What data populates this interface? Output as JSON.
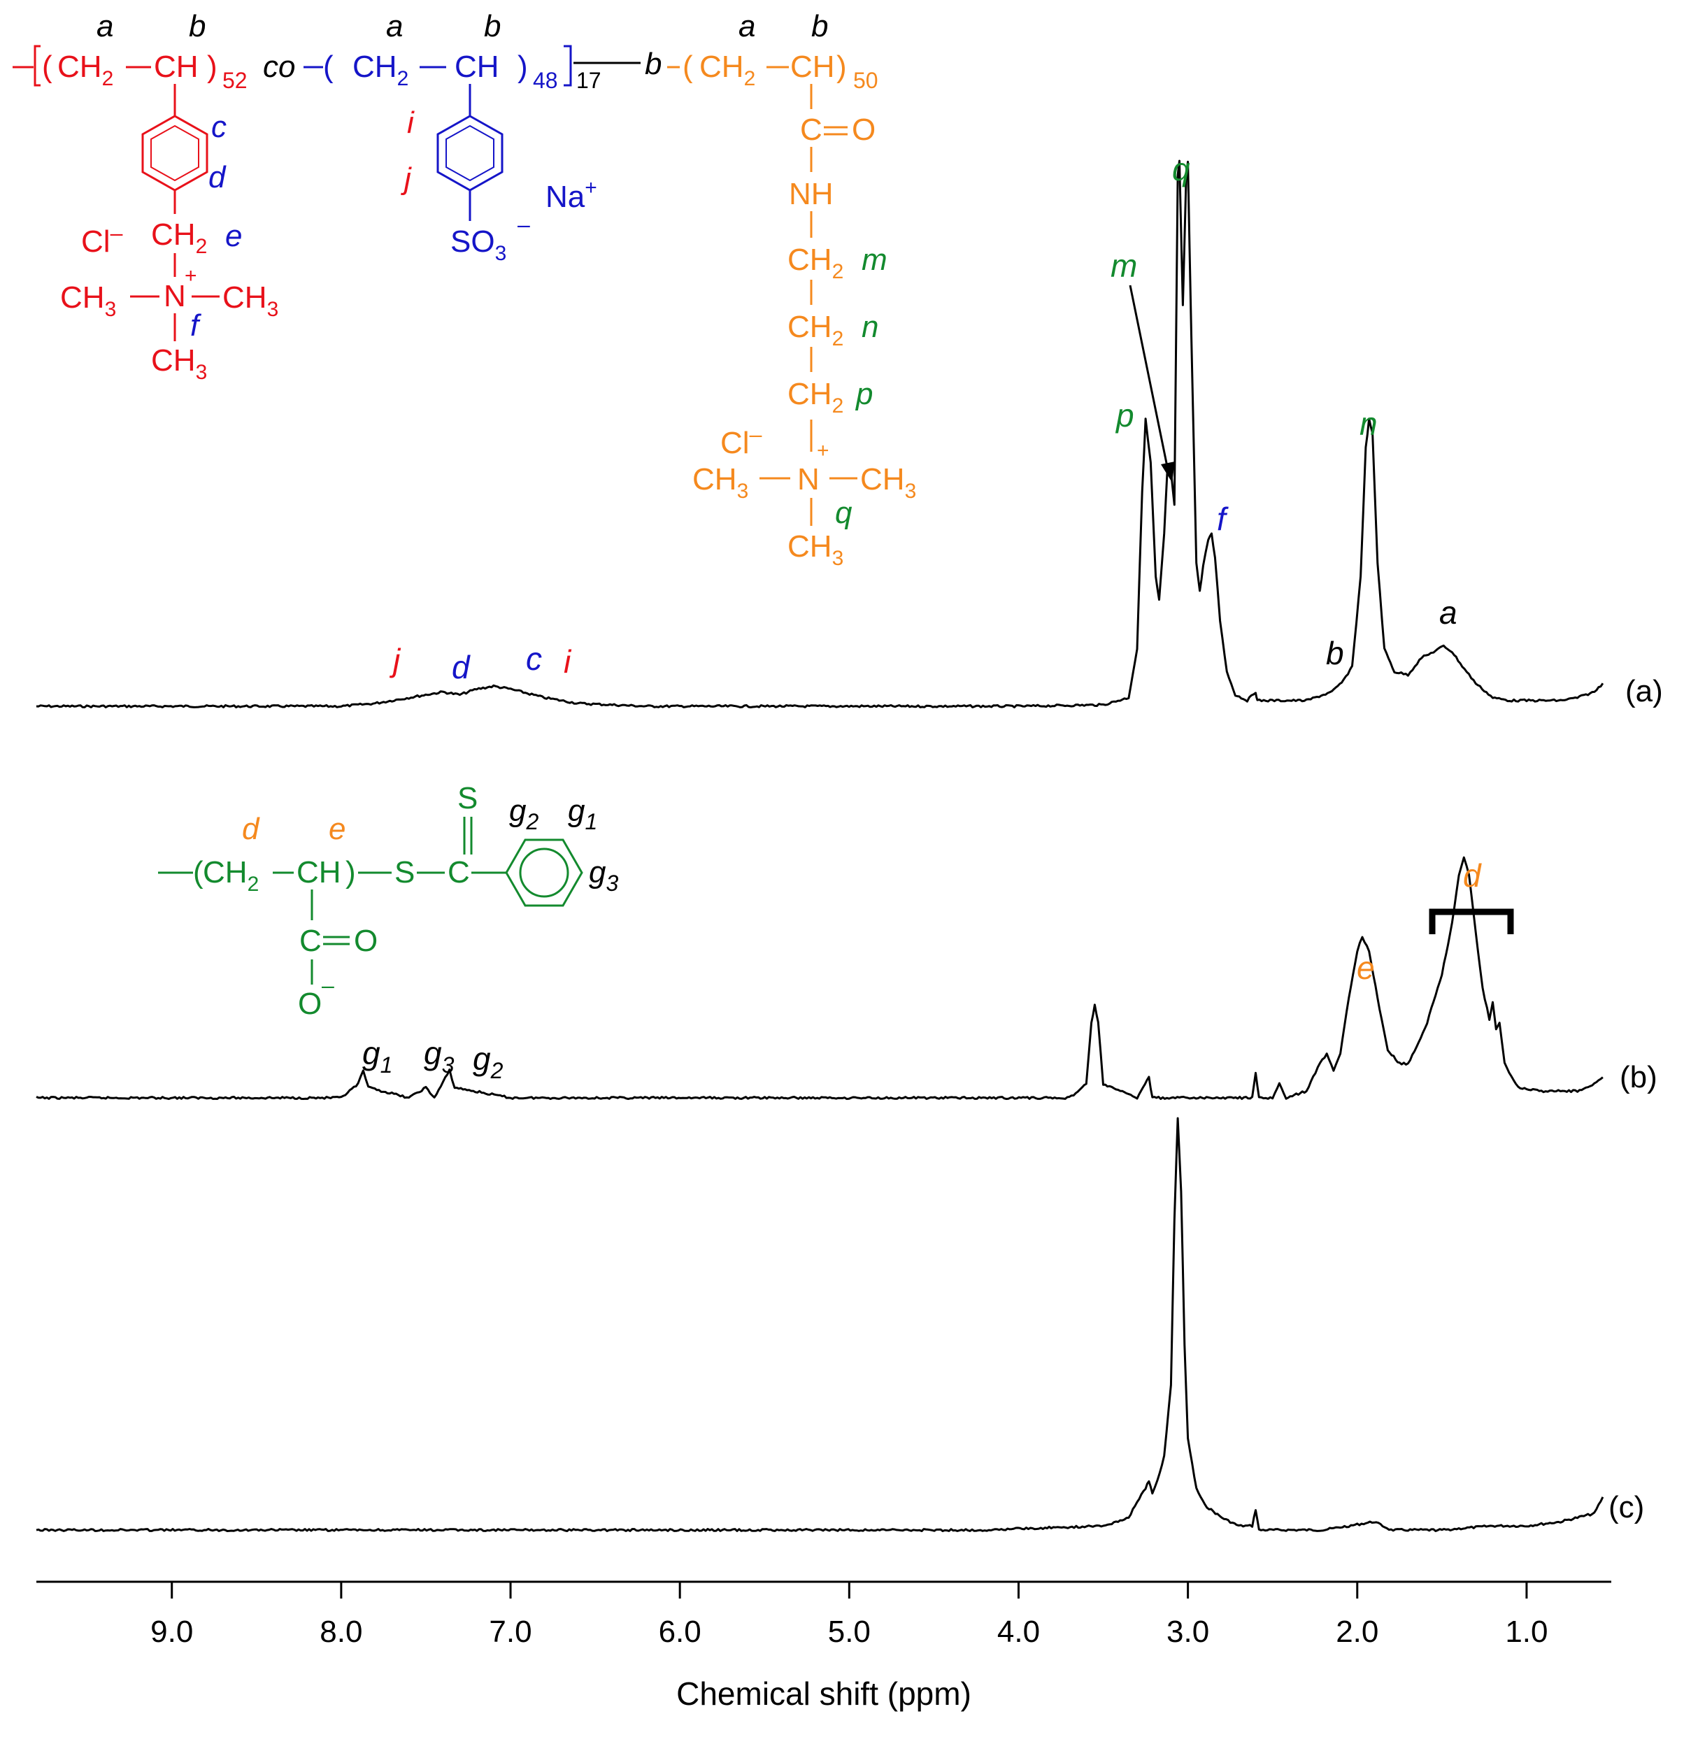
{
  "chart_data": {
    "type": "line",
    "xlabel": "Chemical shift (ppm)",
    "ylabel": "",
    "xlim": [
      9.8,
      0.5
    ],
    "xreversed": true,
    "x_ticks": [
      "9.0",
      "8.0",
      "7.0",
      "6.0",
      "5.0",
      "4.0",
      "3.0",
      "2.0",
      "1.0"
    ],
    "x_tick_values": [
      9.0,
      8.0,
      7.0,
      6.0,
      5.0,
      4.0,
      3.0,
      2.0,
      1.0
    ],
    "grid": false,
    "legend": "none",
    "series": [
      {
        "name": "(a)",
        "color": "#000000",
        "points": [
          [
            9.8,
            0.0
          ],
          [
            8.0,
            0.0
          ],
          [
            7.8,
            0.01
          ],
          [
            7.6,
            0.03
          ],
          [
            7.4,
            0.05
          ],
          [
            7.3,
            0.04
          ],
          [
            7.2,
            0.06
          ],
          [
            7.1,
            0.07
          ],
          [
            7.0,
            0.06
          ],
          [
            6.8,
            0.03
          ],
          [
            6.6,
            0.01
          ],
          [
            6.2,
            0.0
          ],
          [
            4.0,
            0.0
          ],
          [
            3.5,
            0.005
          ],
          [
            3.35,
            0.03
          ],
          [
            3.3,
            0.2
          ],
          [
            3.27,
            0.75
          ],
          [
            3.25,
            1.0
          ],
          [
            3.22,
            0.85
          ],
          [
            3.19,
            0.45
          ],
          [
            3.17,
            0.37
          ],
          [
            3.14,
            0.6
          ],
          [
            3.12,
            0.84
          ],
          [
            3.1,
            0.82
          ],
          [
            3.08,
            0.7
          ],
          [
            3.06,
            1.85
          ],
          [
            3.05,
            1.9
          ],
          [
            3.03,
            1.4
          ],
          [
            3.01,
            1.85
          ],
          [
            3.0,
            1.9
          ],
          [
            2.98,
            1.3
          ],
          [
            2.95,
            0.5
          ],
          [
            2.93,
            0.4
          ],
          [
            2.91,
            0.49
          ],
          [
            2.88,
            0.58
          ],
          [
            2.86,
            0.6
          ],
          [
            2.84,
            0.52
          ],
          [
            2.81,
            0.3
          ],
          [
            2.77,
            0.12
          ],
          [
            2.72,
            0.04
          ],
          [
            2.65,
            0.02
          ],
          [
            2.6,
            0.05
          ],
          [
            2.59,
            0.02
          ],
          [
            2.3,
            0.02
          ],
          [
            2.15,
            0.05
          ],
          [
            2.08,
            0.09
          ],
          [
            2.03,
            0.14
          ],
          [
            1.98,
            0.45
          ],
          [
            1.95,
            0.9
          ],
          [
            1.93,
            1.0
          ],
          [
            1.91,
            0.95
          ],
          [
            1.88,
            0.5
          ],
          [
            1.84,
            0.2
          ],
          [
            1.78,
            0.12
          ],
          [
            1.7,
            0.11
          ],
          [
            1.62,
            0.17
          ],
          [
            1.58,
            0.18
          ],
          [
            1.55,
            0.19
          ],
          [
            1.49,
            0.21
          ],
          [
            1.44,
            0.19
          ],
          [
            1.38,
            0.14
          ],
          [
            1.3,
            0.08
          ],
          [
            1.2,
            0.03
          ],
          [
            1.1,
            0.02
          ],
          [
            0.95,
            0.02
          ],
          [
            0.8,
            0.02
          ],
          [
            0.7,
            0.03
          ],
          [
            0.6,
            0.05
          ],
          [
            0.55,
            0.08
          ]
        ]
      },
      {
        "name": "(b)",
        "color": "#000000",
        "points": [
          [
            9.8,
            0.0
          ],
          [
            8.0,
            0.0
          ],
          [
            7.9,
            0.04
          ],
          [
            7.87,
            0.08
          ],
          [
            7.84,
            0.03
          ],
          [
            7.6,
            0.0
          ],
          [
            7.5,
            0.03
          ],
          [
            7.45,
            0.0
          ],
          [
            7.36,
            0.08
          ],
          [
            7.33,
            0.03
          ],
          [
            7.0,
            0.0
          ],
          [
            3.7,
            0.0
          ],
          [
            3.6,
            0.04
          ],
          [
            3.57,
            0.22
          ],
          [
            3.55,
            0.27
          ],
          [
            3.53,
            0.22
          ],
          [
            3.5,
            0.04
          ],
          [
            3.3,
            0.0
          ],
          [
            3.23,
            0.06
          ],
          [
            3.21,
            0.0
          ],
          [
            2.62,
            0.0
          ],
          [
            2.6,
            0.07
          ],
          [
            2.58,
            0.0
          ],
          [
            2.5,
            0.0
          ],
          [
            2.46,
            0.04
          ],
          [
            2.42,
            0.0
          ],
          [
            2.3,
            0.02
          ],
          [
            2.22,
            0.1
          ],
          [
            2.18,
            0.13
          ],
          [
            2.14,
            0.08
          ],
          [
            2.1,
            0.13
          ],
          [
            2.05,
            0.29
          ],
          [
            2.0,
            0.43
          ],
          [
            1.97,
            0.47
          ],
          [
            1.93,
            0.43
          ],
          [
            1.88,
            0.29
          ],
          [
            1.82,
            0.14
          ],
          [
            1.75,
            0.1
          ],
          [
            1.7,
            0.1
          ],
          [
            1.6,
            0.2
          ],
          [
            1.5,
            0.36
          ],
          [
            1.44,
            0.51
          ],
          [
            1.4,
            0.65
          ],
          [
            1.37,
            0.7
          ],
          [
            1.34,
            0.65
          ],
          [
            1.3,
            0.48
          ],
          [
            1.26,
            0.32
          ],
          [
            1.22,
            0.23
          ],
          [
            1.2,
            0.28
          ],
          [
            1.18,
            0.2
          ],
          [
            1.16,
            0.22
          ],
          [
            1.13,
            0.1
          ],
          [
            1.05,
            0.03
          ],
          [
            0.9,
            0.02
          ],
          [
            0.7,
            0.02
          ],
          [
            0.6,
            0.04
          ],
          [
            0.55,
            0.06
          ]
        ]
      },
      {
        "name": "(c)",
        "color": "#000000",
        "points": [
          [
            9.8,
            0.0
          ],
          [
            4.2,
            0.0
          ],
          [
            3.5,
            0.01
          ],
          [
            3.35,
            0.03
          ],
          [
            3.3,
            0.07
          ],
          [
            3.25,
            0.1
          ],
          [
            3.23,
            0.12
          ],
          [
            3.21,
            0.09
          ],
          [
            3.18,
            0.12
          ],
          [
            3.14,
            0.18
          ],
          [
            3.1,
            0.35
          ],
          [
            3.08,
            0.75
          ],
          [
            3.06,
            1.0
          ],
          [
            3.04,
            0.82
          ],
          [
            3.02,
            0.45
          ],
          [
            3.0,
            0.22
          ],
          [
            2.95,
            0.1
          ],
          [
            2.9,
            0.06
          ],
          [
            2.8,
            0.03
          ],
          [
            2.7,
            0.01
          ],
          [
            2.62,
            0.01
          ],
          [
            2.6,
            0.05
          ],
          [
            2.58,
            0.0
          ],
          [
            2.2,
            0.0
          ],
          [
            1.9,
            0.02
          ],
          [
            1.8,
            0.0
          ],
          [
            1.5,
            0.0
          ],
          [
            1.2,
            0.01
          ],
          [
            1.0,
            0.01
          ],
          [
            0.8,
            0.02
          ],
          [
            0.6,
            0.04
          ],
          [
            0.55,
            0.08
          ]
        ]
      }
    ]
  },
  "labels": {
    "spectrum_a": "(a)",
    "spectrum_b": "(b)",
    "spectrum_c": "(c)",
    "peaks_a": {
      "j": "j",
      "d": "d",
      "c": "c",
      "i": "i",
      "p": "p",
      "m": "m",
      "q": "q",
      "f": "f",
      "b": "b",
      "n": "n",
      "a": "a"
    },
    "peaks_b": {
      "g1": "g",
      "g1_sub": "1",
      "g3": "g",
      "g3_sub": "3",
      "g2": "g",
      "g2_sub": "2",
      "e": "e",
      "d": "d"
    }
  },
  "structure_top": {
    "red_block": {
      "a": "a",
      "b": "b",
      "sub": "52",
      "ch2": "CH",
      "ch2_sub": "2",
      "ch": "CH",
      "c": "c",
      "d": "d",
      "e": "e",
      "f": "f",
      "cl": "Cl",
      "minus": "–",
      "plus": "+",
      "n": "N",
      "ch3": "CH",
      "ch3_sub": "3"
    },
    "co": "co",
    "blue_block": {
      "a": "a",
      "b": "b",
      "sub": "48",
      "ch2": "CH",
      "ch2_sub": "2",
      "ch": "CH",
      "i": "i",
      "j": "j",
      "so3": "SO",
      "so3_sub": "3",
      "na": "Na",
      "plus": "+",
      "minus": "–"
    },
    "bracket_sub": "17",
    "b_link": "b",
    "orange_block": {
      "a": "a",
      "b": "b",
      "sub": "50",
      "ch2": "CH",
      "ch2_sub": "2",
      "ch": "CH",
      "co": "C",
      "o": "O",
      "nh": "NH",
      "m": "m",
      "n_lbl": "n",
      "p": "p",
      "q": "q",
      "cl": "Cl",
      "minus": "–",
      "plus": "+",
      "n": "N",
      "ch3": "CH",
      "ch3_sub": "3"
    }
  },
  "structure_mid": {
    "d": "d",
    "e": "e",
    "ch2": "CH",
    "ch2_sub": "2",
    "ch": "CH",
    "s1": "S",
    "c": "C",
    "s2": "S",
    "co_c": "C",
    "co_o": "O",
    "o": "O",
    "minus": "–",
    "g1": "g",
    "g1_sub": "1",
    "g2": "g",
    "g2_sub": "2",
    "g3": "g",
    "g3_sub": "3"
  },
  "colors": {
    "red": "#e8111a",
    "blue": "#1515c8",
    "orange": "#f5891e",
    "green": "#138a2e",
    "black": "#000000"
  }
}
